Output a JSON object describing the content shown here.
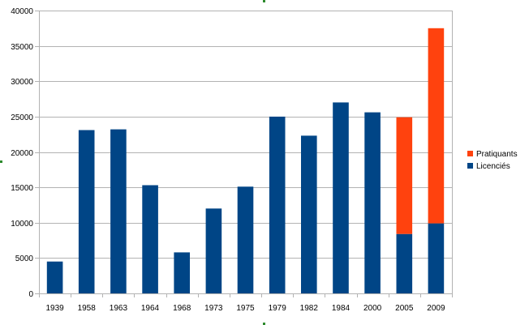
{
  "chart_data": {
    "type": "bar",
    "stacked": true,
    "categories": [
      "1939",
      "1958",
      "1963",
      "1964",
      "1968",
      "1973",
      "1975",
      "1979",
      "1982",
      "1984",
      "2000",
      "2005",
      "2009"
    ],
    "series": [
      {
        "name": "Licenciés",
        "color": "#004586",
        "values": [
          4500,
          23100,
          23200,
          15300,
          5800,
          12000,
          15100,
          25000,
          22300,
          27000,
          25600,
          8400,
          9900
        ]
      },
      {
        "name": "Pratiquants",
        "color": "#ff420e",
        "values": [
          0,
          0,
          0,
          0,
          0,
          0,
          0,
          0,
          0,
          0,
          0,
          16500,
          27600
        ]
      }
    ],
    "ylim": [
      0,
      40000
    ],
    "yticks": [
      "0",
      "5000",
      "10000",
      "15000",
      "20000",
      "25000",
      "30000",
      "35000",
      "40000"
    ],
    "legend": "right",
    "grid": "horizontal",
    "gridColor": "#b3b3b3",
    "legend_order": [
      "Pratiquants",
      "Licenciés"
    ]
  }
}
